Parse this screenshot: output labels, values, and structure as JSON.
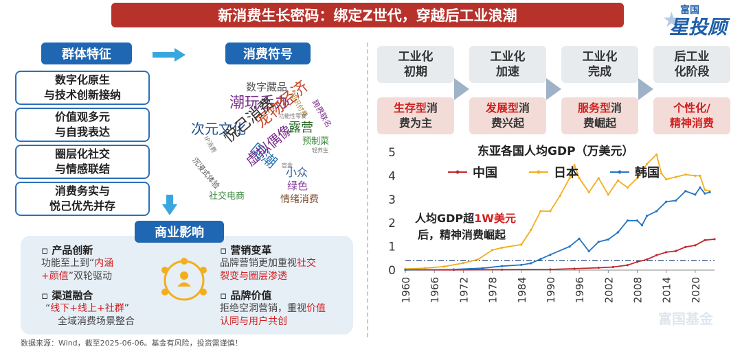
{
  "title": "新消费生长密码：绑定Z世代，穿越后工业浪潮",
  "logo": {
    "top": "富国",
    "main": "星投顾"
  },
  "left": {
    "group_title": "群体特征",
    "features": [
      {
        "line1": "数字化原生",
        "line2": "与技术创新接纳"
      },
      {
        "line1": "价值观多元",
        "line2": "与自我表达"
      },
      {
        "line1": "圈层化社交",
        "line2": "与情感联结"
      },
      {
        "line1": "消费务实与",
        "line2": "悦己优先并存"
      }
    ],
    "symbol_title": "消费符号",
    "word_cloud": {
      "w1": "数字藏品",
      "w2": "潮玩手办",
      "w3": "次元文化",
      "w4": "宠物经济",
      "w5": "露营",
      "w6": "悦己消费",
      "w7": "国潮",
      "w8": "虚拟偶像",
      "w9": "小众",
      "w10": "绿色",
      "w11": "社交电商",
      "w12": "情绪消费",
      "w13": "沉浸式体验",
      "w14": "预制菜",
      "w15": "知识付费",
      "w16": "跨界联名",
      "w17": "功能性零食",
      "w18": "IP消费",
      "w19": "轻养生",
      "w20": "盲盒"
    },
    "biz_title": "商业影响",
    "biz": [
      {
        "head": "产品创新",
        "pre": "功能至上到“",
        "hl1": "内涵",
        "hl2": "+颜值",
        "post": "”双轮驱动"
      },
      {
        "head": "营销变革",
        "pre": "品牌营销更加重视",
        "hl1": "社交",
        "hl2": "裂变与圈层渗透",
        "post": ""
      },
      {
        "head": "渠道融合",
        "pre": "“",
        "hl1": "线下+线上+社群",
        "hl2": "”",
        "post": "全域消费场景整合"
      },
      {
        "head": "品牌价值",
        "pre": "拒绝空洞营销，重视",
        "hl1": "价值",
        "hl2": "认同与用户共创",
        "post": ""
      }
    ]
  },
  "right": {
    "stages": [
      {
        "l1": "工业化",
        "l2": "初期",
        "s_hl": "生存型",
        "s_rest1": "消",
        "s_rest2": "费为主"
      },
      {
        "l1": "工业化",
        "l2": "加速",
        "s_hl": "发展型",
        "s_rest1": "消",
        "s_rest2": "费兴起"
      },
      {
        "l1": "工业化",
        "l2": "完成",
        "s_hl": "服务型",
        "s_rest1": "消",
        "s_rest2": "费崛起"
      },
      {
        "l1": "后工业",
        "l2": "化阶段",
        "s_hl": "个性化/",
        "s_rest1": "",
        "s_rest2": "精神消费"
      }
    ]
  },
  "chart_data": {
    "type": "line",
    "title": "东亚各国人均GDP（万美元）",
    "xlabel": "",
    "ylabel": "",
    "xlim": [
      1960,
      2024
    ],
    "ylim": [
      0,
      5
    ],
    "xticks": [
      "1960",
      "1966",
      "1972",
      "1978",
      "1984",
      "1990",
      "1996",
      "2002",
      "2008",
      "2014",
      "2020"
    ],
    "yticks": [
      "0",
      "1",
      "2",
      "3",
      "4",
      "5"
    ],
    "legend_position": "top",
    "threshold": 0.4,
    "annotation": {
      "line1a": "人均GDP超",
      "line1b": "1W美元",
      "line2": "后，精神消费崛起"
    },
    "watermark": "富国基金",
    "series": [
      {
        "name": "中国",
        "color": "#c0282c",
        "x": [
          1960,
          1970,
          1980,
          1990,
          1995,
          2000,
          2003,
          2006,
          2008,
          2010,
          2012,
          2014,
          2016,
          2018,
          2020,
          2022,
          2024
        ],
        "values": [
          0.01,
          0.01,
          0.02,
          0.03,
          0.06,
          0.1,
          0.13,
          0.21,
          0.35,
          0.45,
          0.63,
          0.76,
          0.81,
          0.98,
          1.05,
          1.27,
          1.31
        ]
      },
      {
        "name": "日本",
        "color": "#f2ae1c",
        "x": [
          1960,
          1964,
          1968,
          1972,
          1975,
          1978,
          1980,
          1984,
          1986,
          1988,
          1990,
          1992,
          1994,
          1995,
          1996,
          1998,
          2000,
          2002,
          2004,
          2006,
          2008,
          2010,
          2012,
          2013,
          2014,
          2016,
          2018,
          2020,
          2021,
          2022,
          2023
        ],
        "values": [
          0.05,
          0.08,
          0.15,
          0.3,
          0.45,
          0.85,
          0.95,
          1.08,
          1.7,
          2.5,
          2.5,
          3.15,
          3.9,
          4.45,
          3.9,
          3.3,
          3.9,
          3.2,
          3.8,
          3.5,
          3.9,
          4.5,
          4.9,
          4.1,
          3.85,
          3.95,
          4.05,
          4.0,
          4.0,
          3.4,
          3.35
        ]
      },
      {
        "name": "韩国",
        "color": "#2474c4",
        "x": [
          1960,
          1970,
          1976,
          1980,
          1984,
          1986,
          1988,
          1990,
          1994,
          1996,
          1998,
          2000,
          2002,
          2004,
          2006,
          2008,
          2009,
          2010,
          2012,
          2014,
          2016,
          2018,
          2020,
          2021,
          2022,
          2023
        ],
        "values": [
          0.01,
          0.03,
          0.08,
          0.17,
          0.22,
          0.29,
          0.47,
          0.65,
          1.0,
          1.33,
          0.8,
          1.2,
          1.3,
          1.6,
          2.1,
          2.1,
          1.9,
          2.3,
          2.5,
          2.9,
          2.95,
          3.35,
          3.2,
          3.5,
          3.25,
          3.3
        ]
      }
    ]
  },
  "footer": "数据来源：Wind，截至2025-06-06。基金有风险，投资需谨慎！"
}
